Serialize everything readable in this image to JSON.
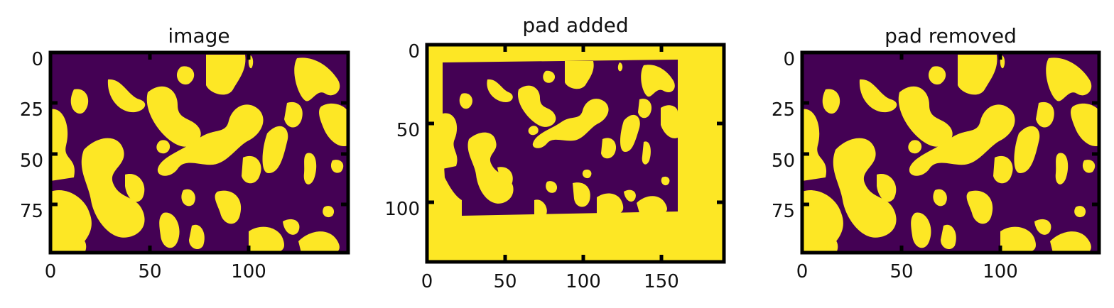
{
  "chart_data": [
    {
      "type": "heatmap",
      "title": "image",
      "xlabel": "",
      "ylabel": "",
      "xlim": [
        0,
        150
      ],
      "ylim": [
        100,
        0
      ],
      "x_ticks": [
        "0",
        "50",
        "100"
      ],
      "y_ticks": [
        "0",
        "25",
        "50",
        "75"
      ],
      "colormap": {
        "0": "#440154",
        "1": "#fde725"
      },
      "grid": false
    },
    {
      "type": "heatmap",
      "title": "pad added",
      "xlabel": "",
      "ylabel": "",
      "xlim": [
        0,
        190
      ],
      "ylim": [
        140,
        0
      ],
      "x_ticks": [
        "0",
        "50",
        "100",
        "150"
      ],
      "y_ticks": [
        "0",
        "50",
        "100"
      ],
      "colormap": {
        "0": "#440154",
        "1": "#fde725"
      },
      "grid": false
    },
    {
      "type": "heatmap",
      "title": "pad removed",
      "xlabel": "",
      "ylabel": "",
      "xlim": [
        0,
        150
      ],
      "ylim": [
        100,
        0
      ],
      "x_ticks": [
        "0",
        "50",
        "100"
      ],
      "y_ticks": [
        "0",
        "25",
        "50",
        "75"
      ],
      "colormap": {
        "0": "#440154",
        "1": "#fde725"
      },
      "grid": false
    }
  ],
  "colors": {
    "pore": "#440154",
    "solid": "#fde725"
  }
}
